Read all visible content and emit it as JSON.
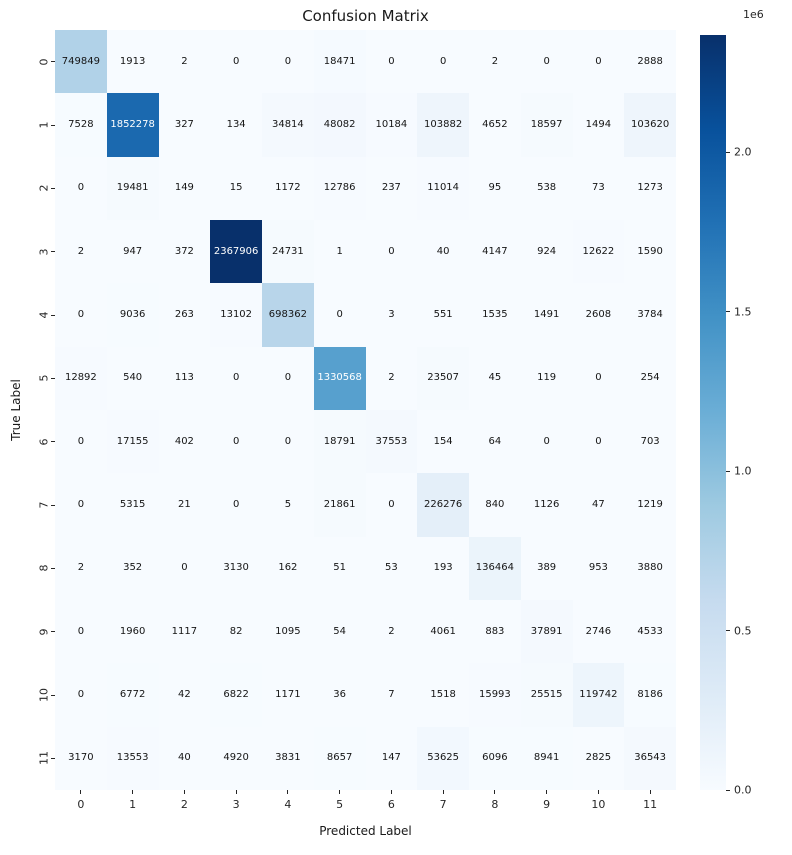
{
  "title": "Confusion Matrix",
  "xlabel": "Predicted Label",
  "ylabel": "True Label",
  "chart_data": {
    "type": "heatmap",
    "title": "Confusion Matrix",
    "xlabel": "Predicted Label",
    "ylabel": "True Label",
    "x_tick_labels": [
      "0",
      "1",
      "2",
      "3",
      "4",
      "5",
      "6",
      "7",
      "8",
      "9",
      "10",
      "11"
    ],
    "y_tick_labels": [
      "0",
      "1",
      "2",
      "3",
      "4",
      "5",
      "6",
      "7",
      "8",
      "9",
      "10",
      "11"
    ],
    "vmin": 0,
    "vmax": 2367906,
    "colormap": "Blues",
    "matrix": [
      [
        749849,
        1913,
        2,
        0,
        0,
        18471,
        0,
        0,
        2,
        0,
        0,
        2888
      ],
      [
        7528,
        1852278,
        327,
        134,
        34814,
        48082,
        10184,
        103882,
        4652,
        18597,
        1494,
        103620
      ],
      [
        0,
        19481,
        149,
        15,
        1172,
        12786,
        237,
        11014,
        95,
        538,
        73,
        1273
      ],
      [
        2,
        947,
        372,
        2367906,
        24731,
        1,
        0,
        40,
        4147,
        924,
        12622,
        1590
      ],
      [
        0,
        9036,
        263,
        13102,
        698362,
        0,
        3,
        551,
        1535,
        1491,
        2608,
        3784
      ],
      [
        12892,
        540,
        113,
        0,
        0,
        1330568,
        2,
        23507,
        45,
        119,
        0,
        254
      ],
      [
        0,
        17155,
        402,
        0,
        0,
        18791,
        37553,
        154,
        64,
        0,
        0,
        703
      ],
      [
        0,
        5315,
        21,
        0,
        5,
        21861,
        0,
        226276,
        840,
        1126,
        47,
        1219
      ],
      [
        2,
        352,
        0,
        3130,
        162,
        51,
        53,
        193,
        136464,
        389,
        953,
        3880
      ],
      [
        0,
        1960,
        1117,
        82,
        1095,
        54,
        2,
        4061,
        883,
        37891,
        2746,
        4533
      ],
      [
        0,
        6772,
        42,
        6822,
        1171,
        36,
        7,
        1518,
        15993,
        25515,
        119742,
        8186
      ],
      [
        3170,
        13553,
        40,
        4920,
        3831,
        8657,
        147,
        53625,
        6096,
        8941,
        2825,
        36543
      ]
    ],
    "colorbar": {
      "scale_label": "1e6",
      "tick_values": [
        0.0,
        0.5,
        1.0,
        1.5,
        2.0
      ],
      "tick_labels": [
        "0.0",
        "0.5",
        "1.0",
        "1.5",
        "2.0"
      ],
      "tick_scale": 1000000,
      "position": "right"
    },
    "legend": null,
    "grid": false
  },
  "colors": {
    "blues_anchors": [
      "#f7fbff",
      "#deebf7",
      "#c6dbef",
      "#9ecae1",
      "#6baed6",
      "#4292c6",
      "#2171b5",
      "#08519c",
      "#08306b"
    ],
    "dark_text": "#151515",
    "light_text": "#ffffff",
    "tick_color": "#262626",
    "background": "#ffffff"
  }
}
